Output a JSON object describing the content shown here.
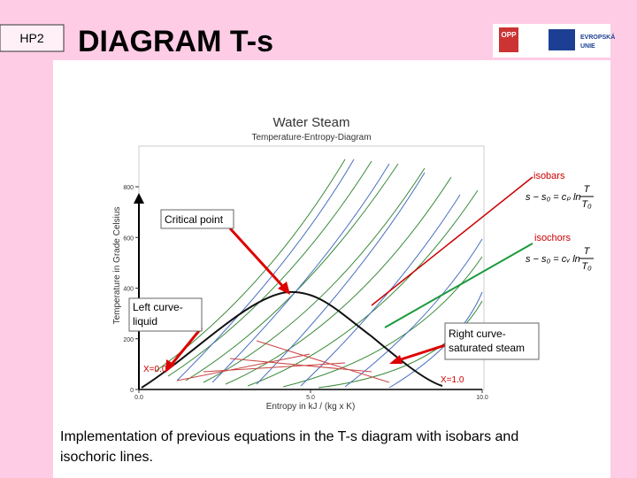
{
  "header": {
    "label": "HP2",
    "title": "DIAGRAM T-s",
    "logo_left": "OPP",
    "logo_right": [
      "EVROPSKÁ",
      "UNIE"
    ]
  },
  "diagram": {
    "title": "Water Steam",
    "subtitle": "Temperature-Entropy-Diagram",
    "y_label": "Temperature in Grade Celsius",
    "x_label": "Entropy in kJ / (kg x K)",
    "yticks": [
      0,
      200,
      400,
      600,
      800
    ],
    "xticks": [
      {
        "value": 0,
        "label": "0.0"
      },
      {
        "value": 5,
        "label": "5.0"
      },
      {
        "value": 10,
        "label": "10.0"
      }
    ],
    "quality_left": "X=0.0",
    "quality_right": "X=1.0"
  },
  "annotations": {
    "isobars": "isobars",
    "isobar_equation": {
      "lhs": "s − s₀ = cₚ ln",
      "num": "T",
      "den": "T₀"
    },
    "isochors": "isochors",
    "isochor_equation": {
      "lhs": "s − s₀ = cᵥ ln",
      "num": "T",
      "den": "T₀"
    },
    "critical_point": "Critical point",
    "left_curve": [
      "Left curve-",
      "liquid"
    ],
    "right_curve": [
      "Right curve-",
      "saturated steam"
    ]
  },
  "caption": [
    "Implementation of previous equations in the T-s diagram with isobars and",
    "isochoric lines."
  ]
}
